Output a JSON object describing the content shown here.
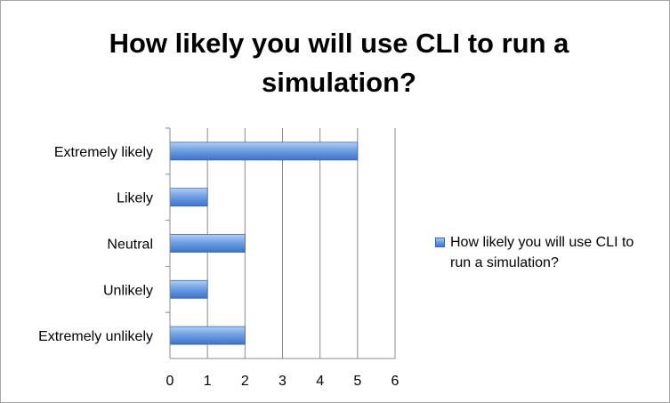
{
  "chart_data": {
    "type": "bar",
    "orientation": "horizontal",
    "title": "How likely you will use CLI to run a simulation?",
    "categories": [
      "Extremely likely",
      "Likely",
      "Neutral",
      "Unlikely",
      "Extremely unlikely"
    ],
    "series": [
      {
        "name": "How likely you will use CLI to run a simulation?",
        "values": [
          5,
          1,
          2,
          1,
          2
        ],
        "color": "#4f81d6"
      }
    ],
    "x_ticks": [
      "0",
      "1",
      "2",
      "3",
      "4",
      "5",
      "6"
    ],
    "xlim": [
      0,
      6
    ],
    "xlabel": "",
    "ylabel": "",
    "grid": "vertical",
    "legend": "right"
  }
}
